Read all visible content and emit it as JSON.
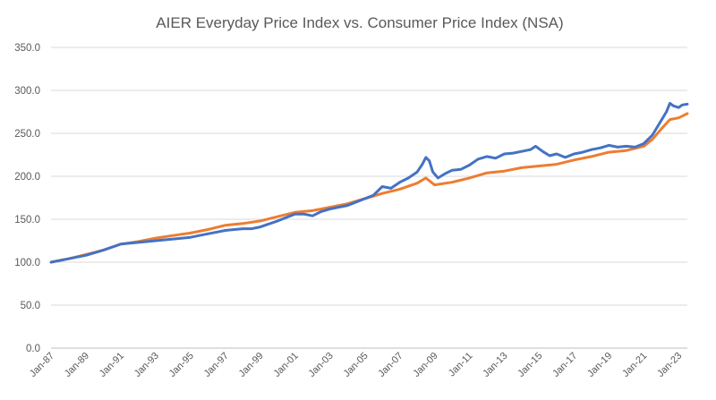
{
  "chart_data": {
    "type": "line",
    "title": "AIER Everyday Price Index vs. Consumer Price Index (NSA)",
    "xlabel": "",
    "ylabel": "",
    "ylim": [
      0,
      350
    ],
    "yticks": [
      "0.0",
      "50.0",
      "100.0",
      "150.0",
      "200.0",
      "250.0",
      "300.0",
      "350.0"
    ],
    "grid": true,
    "x_range": [
      1987.0,
      2023.5
    ],
    "x_ticks": [
      {
        "label": "Jan-87",
        "x": 1987
      },
      {
        "label": "Jan-89",
        "x": 1989
      },
      {
        "label": "Jan-91",
        "x": 1991
      },
      {
        "label": "Jan-93",
        "x": 1993
      },
      {
        "label": "Jan-95",
        "x": 1995
      },
      {
        "label": "Jan-97",
        "x": 1997
      },
      {
        "label": "Jan-99",
        "x": 1999
      },
      {
        "label": "Jan-01",
        "x": 2001
      },
      {
        "label": "Jan-03",
        "x": 2003
      },
      {
        "label": "Jan-05",
        "x": 2005
      },
      {
        "label": "Jan-07",
        "x": 2007
      },
      {
        "label": "Jan-09",
        "x": 2009
      },
      {
        "label": "Jan-11",
        "x": 2011
      },
      {
        "label": "Jan-13",
        "x": 2013
      },
      {
        "label": "Jan-15",
        "x": 2015
      },
      {
        "label": "Jan-17",
        "x": 2017
      },
      {
        "label": "Jan-19",
        "x": 2019
      },
      {
        "label": "Jan-21",
        "x": 2021
      },
      {
        "label": "Jan-23",
        "x": 2023
      }
    ],
    "series": [
      {
        "name": "AIER Everyday Price Index",
        "color": "#4472c4",
        "points": [
          [
            1987.0,
            100
          ],
          [
            1988.0,
            104
          ],
          [
            1989.0,
            108
          ],
          [
            1990.0,
            114
          ],
          [
            1991.0,
            121
          ],
          [
            1992.0,
            123
          ],
          [
            1993.0,
            125
          ],
          [
            1994.0,
            127
          ],
          [
            1995.0,
            129
          ],
          [
            1995.5,
            131
          ],
          [
            1996.0,
            133
          ],
          [
            1997.0,
            137
          ],
          [
            1998.0,
            139
          ],
          [
            1998.5,
            139
          ],
          [
            1999.0,
            141
          ],
          [
            2000.0,
            148
          ],
          [
            2001.0,
            156
          ],
          [
            2001.5,
            156
          ],
          [
            2002.0,
            154
          ],
          [
            2002.5,
            159
          ],
          [
            2003.0,
            162
          ],
          [
            2004.0,
            166
          ],
          [
            2004.5,
            170
          ],
          [
            2005.0,
            174
          ],
          [
            2005.5,
            178
          ],
          [
            2006.0,
            188
          ],
          [
            2006.5,
            186
          ],
          [
            2007.0,
            193
          ],
          [
            2007.5,
            198
          ],
          [
            2008.0,
            205
          ],
          [
            2008.3,
            214
          ],
          [
            2008.5,
            222
          ],
          [
            2008.7,
            218
          ],
          [
            2008.9,
            205
          ],
          [
            2009.2,
            198
          ],
          [
            2009.6,
            203
          ],
          [
            2010.0,
            207
          ],
          [
            2010.5,
            208
          ],
          [
            2011.0,
            213
          ],
          [
            2011.5,
            220
          ],
          [
            2012.0,
            223
          ],
          [
            2012.5,
            221
          ],
          [
            2013.0,
            226
          ],
          [
            2013.5,
            227
          ],
          [
            2014.0,
            229
          ],
          [
            2014.5,
            231
          ],
          [
            2014.8,
            235
          ],
          [
            2015.2,
            229
          ],
          [
            2015.6,
            224
          ],
          [
            2016.0,
            226
          ],
          [
            2016.5,
            222
          ],
          [
            2017.0,
            226
          ],
          [
            2017.5,
            228
          ],
          [
            2018.0,
            231
          ],
          [
            2018.5,
            233
          ],
          [
            2019.0,
            236
          ],
          [
            2019.5,
            234
          ],
          [
            2020.0,
            235
          ],
          [
            2020.5,
            234
          ],
          [
            2021.0,
            238
          ],
          [
            2021.5,
            248
          ],
          [
            2022.0,
            265
          ],
          [
            2022.3,
            275
          ],
          [
            2022.5,
            285
          ],
          [
            2022.7,
            282
          ],
          [
            2023.0,
            280
          ],
          [
            2023.2,
            283
          ],
          [
            2023.5,
            284
          ]
        ]
      },
      {
        "name": "Consumer Price Index (NSA)",
        "color": "#ed7d31",
        "points": [
          [
            1987.0,
            100
          ],
          [
            1988.0,
            104
          ],
          [
            1989.0,
            109
          ],
          [
            1990.0,
            114
          ],
          [
            1991.0,
            121
          ],
          [
            1992.0,
            124
          ],
          [
            1993.0,
            128
          ],
          [
            1994.0,
            131
          ],
          [
            1995.0,
            134
          ],
          [
            1996.0,
            138
          ],
          [
            1997.0,
            143
          ],
          [
            1998.0,
            145
          ],
          [
            1999.0,
            148
          ],
          [
            2000.0,
            153
          ],
          [
            2001.0,
            158
          ],
          [
            2002.0,
            160
          ],
          [
            2003.0,
            164
          ],
          [
            2004.0,
            168
          ],
          [
            2005.0,
            174
          ],
          [
            2006.0,
            180
          ],
          [
            2007.0,
            185
          ],
          [
            2008.0,
            192
          ],
          [
            2008.5,
            198
          ],
          [
            2009.0,
            190
          ],
          [
            2010.0,
            193
          ],
          [
            2011.0,
            198
          ],
          [
            2012.0,
            204
          ],
          [
            2013.0,
            206
          ],
          [
            2014.0,
            210
          ],
          [
            2015.0,
            212
          ],
          [
            2016.0,
            214
          ],
          [
            2017.0,
            219
          ],
          [
            2018.0,
            223
          ],
          [
            2019.0,
            228
          ],
          [
            2020.0,
            230
          ],
          [
            2021.0,
            235
          ],
          [
            2021.5,
            243
          ],
          [
            2022.0,
            255
          ],
          [
            2022.5,
            266
          ],
          [
            2023.0,
            268
          ],
          [
            2023.5,
            273
          ]
        ]
      }
    ]
  }
}
